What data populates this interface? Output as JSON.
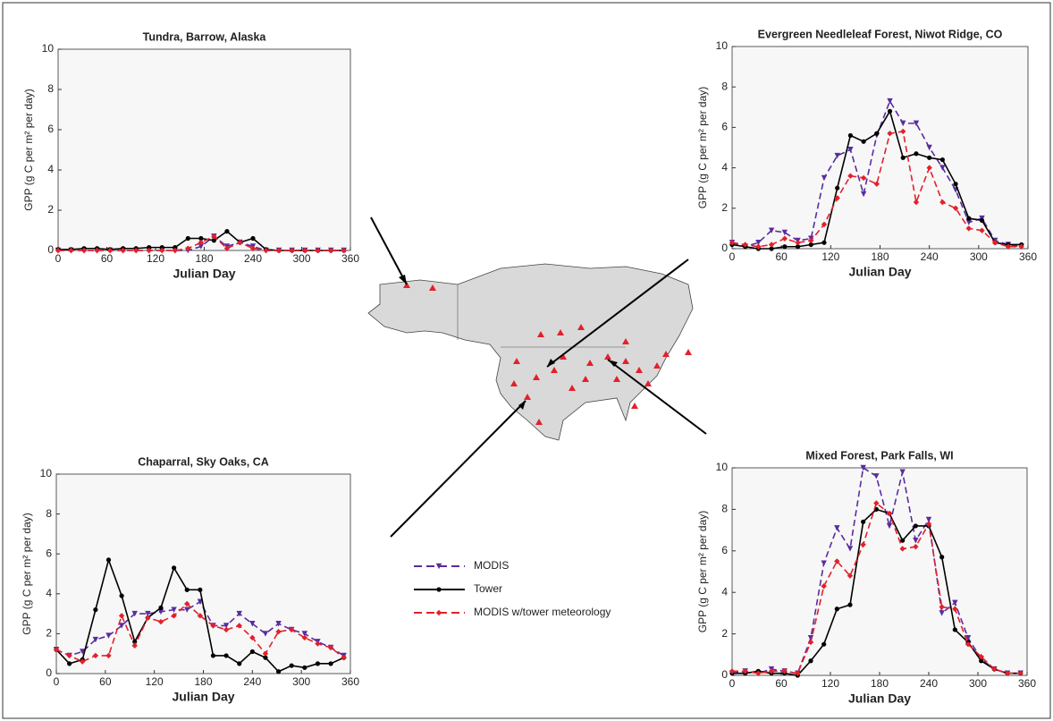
{
  "chart_data": [
    {
      "type": "line",
      "title": "Tundra, Barrow, Alaska",
      "xlabel": "Julian Day",
      "ylabel": "GPP (g C per m² per day)",
      "x": [
        0,
        16,
        32,
        48,
        64,
        80,
        96,
        112,
        128,
        144,
        160,
        176,
        192,
        208,
        224,
        240,
        256,
        272,
        288,
        304,
        320,
        336,
        352
      ],
      "xlim": [
        0,
        360
      ],
      "xticks": [
        0,
        60,
        120,
        180,
        240,
        300,
        360
      ],
      "ylim": [
        0,
        10
      ],
      "yticks": [
        0,
        2,
        4,
        6,
        8,
        10
      ],
      "series": [
        {
          "values": [
            0,
            0,
            0,
            0,
            0,
            0,
            0,
            0,
            0,
            0,
            0,
            0.2,
            0.7,
            0.2,
            0.4,
            0.2,
            0,
            0,
            0,
            0,
            0,
            0,
            0
          ]
        },
        {
          "values": [
            0.05,
            0.05,
            0.1,
            0.1,
            0.05,
            0.1,
            0.1,
            0.15,
            0.15,
            0.15,
            0.6,
            0.6,
            0.5,
            0.95,
            0.4,
            0.6,
            0.05,
            0,
            0,
            0,
            0,
            0,
            0
          ]
        },
        {
          "values": [
            0,
            0,
            0,
            0,
            0,
            0,
            0,
            0,
            0,
            0,
            0.1,
            0.4,
            0.7,
            0.1,
            0.4,
            0.1,
            0,
            0,
            0,
            0,
            0,
            0,
            0
          ]
        }
      ]
    },
    {
      "type": "line",
      "title": "Evergreen Needleleaf Forest, Niwot Ridge, CO",
      "xlabel": "Julian Day",
      "ylabel": "GPP (g C per m² per day)",
      "x": [
        0,
        16,
        32,
        48,
        64,
        80,
        96,
        112,
        128,
        144,
        160,
        176,
        192,
        208,
        224,
        240,
        256,
        272,
        288,
        304,
        320,
        336,
        352
      ],
      "xlim": [
        0,
        360
      ],
      "xticks": [
        0,
        60,
        120,
        180,
        240,
        300,
        360
      ],
      "ylim": [
        0,
        10
      ],
      "yticks": [
        0,
        2,
        4,
        6,
        8,
        10
      ],
      "series": [
        {
          "values": [
            0.3,
            0.1,
            0.3,
            0.9,
            0.8,
            0.4,
            0.5,
            3.5,
            4.6,
            4.9,
            2.7,
            5.6,
            7.3,
            6.2,
            6.2,
            5.0,
            4.0,
            2.9,
            1.3,
            1.5,
            0.4,
            0.2,
            0.1
          ]
        },
        {
          "values": [
            0.2,
            0.1,
            0,
            0,
            0.1,
            0.1,
            0.2,
            0.3,
            3.0,
            5.6,
            5.3,
            5.7,
            6.8,
            4.5,
            4.7,
            4.5,
            4.4,
            3.2,
            1.5,
            1.4,
            0.3,
            0.2,
            0.2
          ]
        },
        {
          "values": [
            0.3,
            0.2,
            0.1,
            0.2,
            0.5,
            0.3,
            0.4,
            1.2,
            2.5,
            3.6,
            3.5,
            3.2,
            5.7,
            5.8,
            2.3,
            4.0,
            2.3,
            2.0,
            1.0,
            0.9,
            0.3,
            0.1,
            0.1
          ]
        }
      ]
    },
    {
      "type": "line",
      "title": "Chaparral, Sky Oaks, CA",
      "xlabel": "Julian Day",
      "ylabel": "GPP (g C per m² per day)",
      "x": [
        0,
        16,
        32,
        48,
        64,
        80,
        96,
        112,
        128,
        144,
        160,
        176,
        192,
        208,
        224,
        240,
        256,
        272,
        288,
        304,
        320,
        336,
        352
      ],
      "xlim": [
        0,
        360
      ],
      "xticks": [
        0,
        60,
        120,
        180,
        240,
        300,
        360
      ],
      "ylim": [
        0,
        10
      ],
      "yticks": [
        0,
        2,
        4,
        6,
        8,
        10
      ],
      "series": [
        {
          "values": [
            1.2,
            0.9,
            1.1,
            1.7,
            1.9,
            2.4,
            3.0,
            3.0,
            3.1,
            3.2,
            3.2,
            3.6,
            2.4,
            2.4,
            3.0,
            2.5,
            2.0,
            2.5,
            2.2,
            2.0,
            1.6,
            1.3,
            0.9
          ]
        },
        {
          "values": [
            1.2,
            0.5,
            0.7,
            3.2,
            5.7,
            3.9,
            1.6,
            2.8,
            3.3,
            5.3,
            4.2,
            4.2,
            0.9,
            0.9,
            0.5,
            1.1,
            0.8,
            0.1,
            0.4,
            0.3,
            0.5,
            0.5,
            0.8
          ]
        },
        {
          "values": [
            1.2,
            0.9,
            0.6,
            0.9,
            0.9,
            2.9,
            1.4,
            2.8,
            2.6,
            2.9,
            3.5,
            2.9,
            2.4,
            2.2,
            2.4,
            1.8,
            1.0,
            2.1,
            2.2,
            1.8,
            1.5,
            1.3,
            0.8
          ]
        }
      ]
    },
    {
      "type": "line",
      "title": "Mixed Forest, Park Falls, WI",
      "xlabel": "Julian Day",
      "ylabel": "GPP (g C per m² per day)",
      "x": [
        0,
        16,
        32,
        48,
        64,
        80,
        96,
        112,
        128,
        144,
        160,
        176,
        192,
        208,
        224,
        240,
        256,
        272,
        288,
        304,
        320,
        336,
        352
      ],
      "xlim": [
        0,
        360
      ],
      "xticks": [
        0,
        60,
        120,
        180,
        240,
        300,
        360
      ],
      "ylim": [
        0,
        10
      ],
      "yticks": [
        0,
        2,
        4,
        6,
        8,
        10
      ],
      "series": [
        {
          "values": [
            0.1,
            0.2,
            0.1,
            0.3,
            0.2,
            0.1,
            1.8,
            5.4,
            7.1,
            6.1,
            10,
            9.6,
            7.2,
            9.8,
            6.5,
            7.5,
            3.0,
            3.5,
            1.8,
            0.8,
            0.3,
            0.1,
            0.1
          ]
        },
        {
          "values": [
            0.1,
            0.1,
            0.2,
            0.1,
            0.1,
            0,
            0.7,
            1.5,
            3.2,
            3.4,
            7.4,
            8.0,
            7.8,
            6.5,
            7.2,
            7.2,
            5.7,
            2.2,
            1.6,
            0.7,
            0.3,
            0.1,
            0.1
          ]
        },
        {
          "values": [
            0.2,
            0.2,
            0.1,
            0.2,
            0.2,
            0.1,
            1.6,
            4.3,
            5.5,
            4.8,
            6.3,
            8.3,
            7.8,
            6.1,
            6.2,
            7.3,
            3.3,
            3.2,
            1.5,
            0.9,
            0.3,
            0.1,
            0.1
          ]
        }
      ]
    }
  ],
  "legend": [
    {
      "name": "MODIS",
      "color": "#5a2ca0",
      "marker": "v",
      "dashed": true
    },
    {
      "name": "Tower",
      "color": "#000000",
      "marker": "o",
      "dashed": false
    },
    {
      "name": "MODIS w/tower meteorology",
      "color": "#e3202b",
      "marker": "D",
      "dashed": true
    }
  ]
}
